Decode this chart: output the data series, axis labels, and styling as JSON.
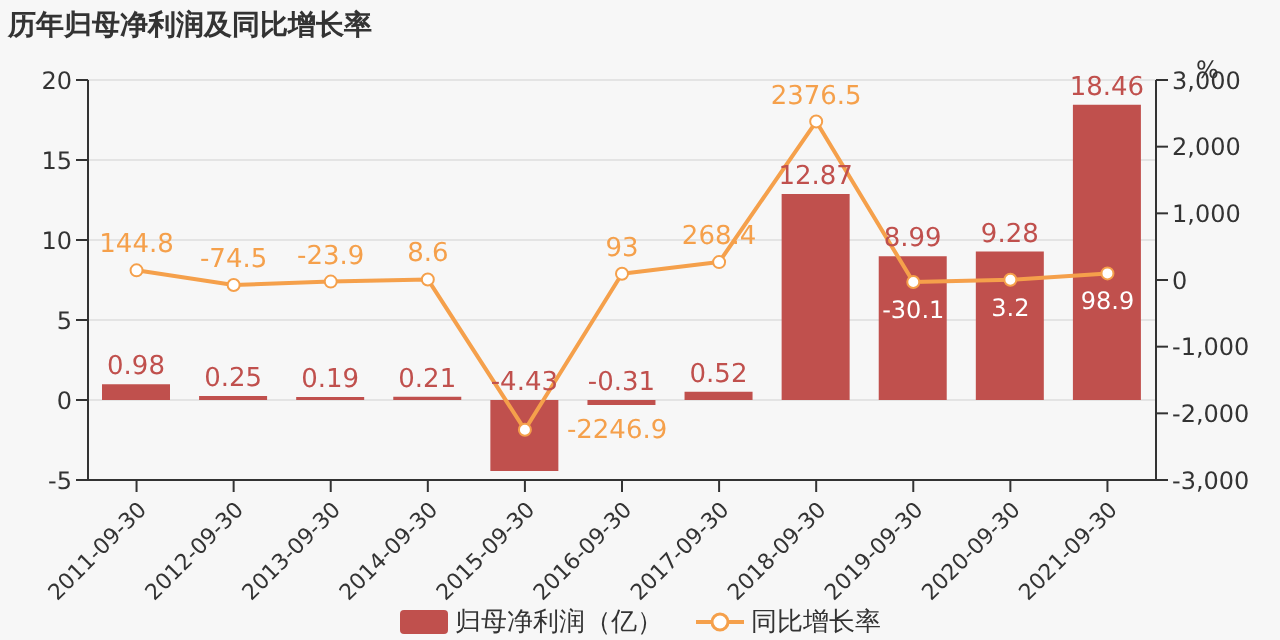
{
  "chart_data": {
    "type": "bar",
    "title": "历年归母净利润及同比增长率",
    "y2label": "%",
    "categories": [
      "2011-09-30",
      "2012-09-30",
      "2013-09-30",
      "2014-09-30",
      "2015-09-30",
      "2016-09-30",
      "2017-09-30",
      "2018-09-30",
      "2019-09-30",
      "2020-09-30",
      "2021-09-30"
    ],
    "series": [
      {
        "name": "归母净利润（亿）",
        "color": "#c0504d",
        "values": [
          0.98,
          0.25,
          0.19,
          0.21,
          -4.43,
          -0.31,
          0.52,
          12.87,
          8.99,
          9.28,
          18.46
        ]
      },
      {
        "name": "同比增长率",
        "type": "line",
        "axis": "y2",
        "color": "#f5a04b",
        "values": [
          144.8,
          -74.5,
          -23.9,
          8.6,
          -2246.9,
          93,
          268.4,
          2376.5,
          -30.1,
          3.2,
          98.9
        ]
      }
    ],
    "ylim": [
      -5,
      20
    ],
    "yticks": [
      -5,
      0,
      5,
      10,
      15,
      20
    ],
    "y2lim": [
      -3000,
      3000
    ],
    "y2ticks": [
      {
        "value": -3000,
        "label": "-3,000"
      },
      {
        "value": -2000,
        "label": "-2,000"
      },
      {
        "value": -1000,
        "label": "-1,000"
      },
      0,
      {
        "value": 1000,
        "label": "1,000"
      },
      {
        "value": 2000,
        "label": "2,000"
      },
      {
        "value": 3000,
        "label": "3,000"
      }
    ],
    "grid": "y",
    "legend": "bottom",
    "marker": "circle",
    "data_labels": true
  }
}
